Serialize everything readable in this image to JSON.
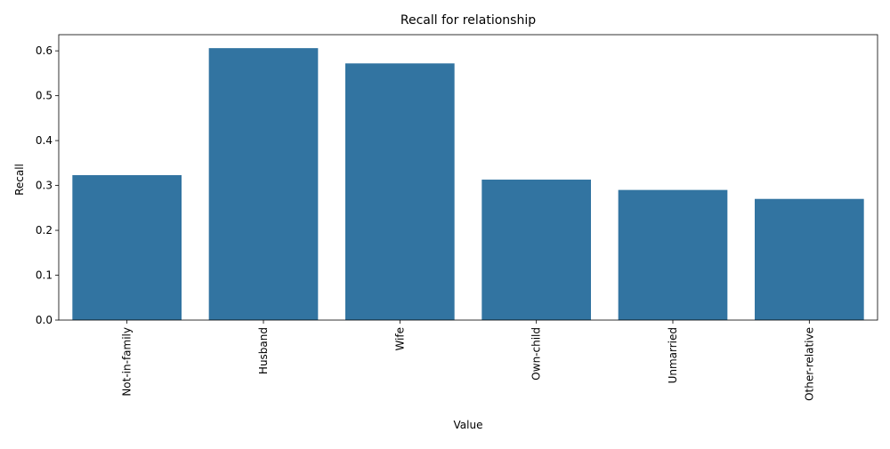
{
  "chart_data": {
    "type": "bar",
    "title": "Recall for relationship",
    "xlabel": "Value",
    "ylabel": "Recall",
    "categories": [
      "Not-in-family",
      "Husband",
      "Wife",
      "Own-child",
      "Unmarried",
      "Other-relative"
    ],
    "values": [
      0.323,
      0.606,
      0.572,
      0.313,
      0.29,
      0.27
    ],
    "ylim": [
      0,
      0.636
    ],
    "yticks": [
      "0.0",
      "0.1",
      "0.2",
      "0.3",
      "0.4",
      "0.5",
      "0.6"
    ],
    "bar_color": "#3274a1",
    "grid": false,
    "legend": "none"
  }
}
